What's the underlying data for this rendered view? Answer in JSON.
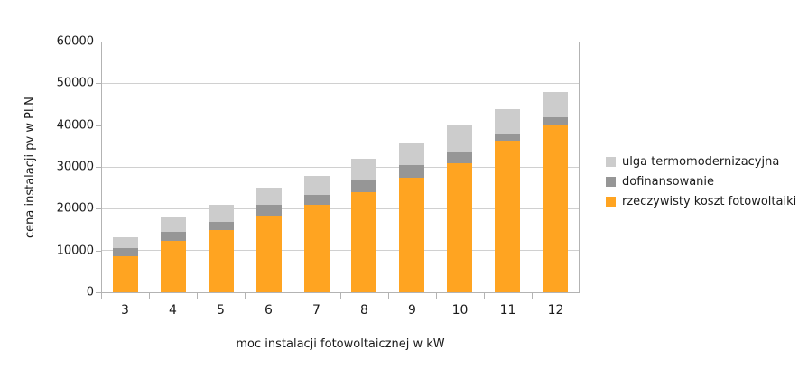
{
  "chart_data": {
    "type": "bar",
    "stacked": true,
    "title": "",
    "xlabel": "moc instalacji fotowoltaicznej w kW",
    "ylabel": "cena instalacji pv w PLN",
    "categories": [
      "3",
      "4",
      "5",
      "6",
      "7",
      "8",
      "9",
      "10",
      "11",
      "12"
    ],
    "series": [
      {
        "name": "rzeczywisty koszt fotowoltaiki",
        "color": "#ffa421",
        "values": [
          8700,
          12300,
          15000,
          18500,
          21000,
          24000,
          27500,
          31000,
          36500,
          40000
        ]
      },
      {
        "name": "dofinansowanie",
        "color": "#969696",
        "values": [
          2000,
          2200,
          2000,
          2500,
          2500,
          3000,
          3000,
          2500,
          1500,
          2000
        ]
      },
      {
        "name": "ulga termomodernizacyjna",
        "color": "#cccccc",
        "values": [
          2600,
          3500,
          4000,
          4200,
          4500,
          5000,
          5500,
          6500,
          6000,
          6000
        ]
      }
    ],
    "totals": [
      13300,
      18000,
      21000,
      25200,
      28000,
      32000,
      36000,
      40000,
      44000,
      48000
    ],
    "ylim": [
      0,
      60000
    ],
    "yticks": [
      0,
      10000,
      20000,
      30000,
      40000,
      50000,
      60000
    ],
    "grid": true,
    "legend_position": "right",
    "legend_order": [
      "ulga termomodernizacyjna",
      "dofinansowanie",
      "rzeczywisty koszt fotowoltaiki"
    ]
  }
}
